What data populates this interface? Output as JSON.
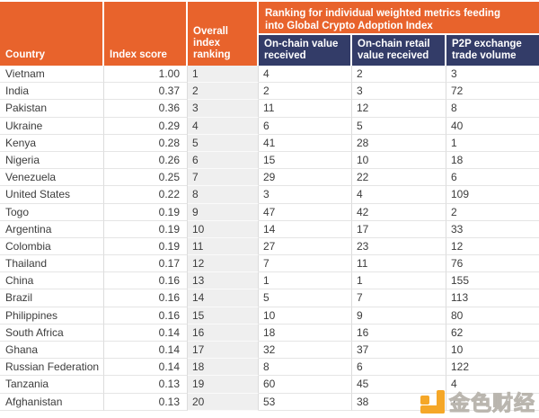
{
  "header": {
    "group_line1": "Ranking for individual weighted metrics feeding",
    "group_line2": "into Global Crypto Adoption Index",
    "country": "Country",
    "index_score": "Index score",
    "overall_ranking": "Overall index ranking",
    "on_chain_value": "On-chain value received",
    "on_chain_retail": "On-chain retail value received",
    "p2p_volume": "P2P exchange trade volume"
  },
  "chart_data": {
    "type": "table",
    "title": "Ranking for individual weighted metrics feeding into Global Crypto Adoption Index",
    "columns": [
      "Country",
      "Index score",
      "Overall index ranking",
      "On-chain value received",
      "On-chain retail value received",
      "P2P exchange trade volume"
    ],
    "rows": [
      [
        "Vietnam",
        "1.00",
        "1",
        "4",
        "2",
        "3"
      ],
      [
        "India",
        "0.37",
        "2",
        "2",
        "3",
        "72"
      ],
      [
        "Pakistan",
        "0.36",
        "3",
        "11",
        "12",
        "8"
      ],
      [
        "Ukraine",
        "0.29",
        "4",
        "6",
        "5",
        "40"
      ],
      [
        "Kenya",
        "0.28",
        "5",
        "41",
        "28",
        "1"
      ],
      [
        "Nigeria",
        "0.26",
        "6",
        "15",
        "10",
        "18"
      ],
      [
        "Venezuela",
        "0.25",
        "7",
        "29",
        "22",
        "6"
      ],
      [
        "United States",
        "0.22",
        "8",
        "3",
        "4",
        "109"
      ],
      [
        "Togo",
        "0.19",
        "9",
        "47",
        "42",
        "2"
      ],
      [
        "Argentina",
        "0.19",
        "10",
        "14",
        "17",
        "33"
      ],
      [
        "Colombia",
        "0.19",
        "11",
        "27",
        "23",
        "12"
      ],
      [
        "Thailand",
        "0.17",
        "12",
        "7",
        "11",
        "76"
      ],
      [
        "China",
        "0.16",
        "13",
        "1",
        "1",
        "155"
      ],
      [
        "Brazil",
        "0.16",
        "14",
        "5",
        "7",
        "113"
      ],
      [
        "Philippines",
        "0.16",
        "15",
        "10",
        "9",
        "80"
      ],
      [
        "South Africa",
        "0.14",
        "16",
        "18",
        "16",
        "62"
      ],
      [
        "Ghana",
        "0.14",
        "17",
        "32",
        "37",
        "10"
      ],
      [
        "Russian Federation",
        "0.14",
        "18",
        "8",
        "6",
        "122"
      ],
      [
        "Tanzania",
        "0.13",
        "19",
        "60",
        "45",
        "4"
      ],
      [
        "Afghanistan",
        "0.13",
        "20",
        "53",
        "38",
        "7"
      ]
    ]
  },
  "watermark": {
    "text": "金色财经"
  },
  "colors": {
    "header_orange": "#E8632C",
    "header_navy": "#333C68",
    "ranking_column_bg": "#EFEFEF",
    "gridline": "#DCDCDC",
    "watermark_orange": "#F5A728"
  }
}
